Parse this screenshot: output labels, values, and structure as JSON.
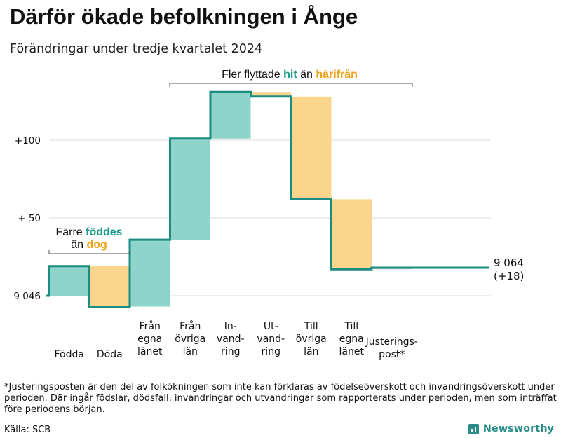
{
  "header": {
    "title": "Därför ökade befolkningen i Ånge",
    "subtitle": "Förändringar under tredje kvartalet 2024"
  },
  "chart_data": {
    "type": "waterfall",
    "title": "Därför ökade befolkningen i Ånge",
    "subtitle": "Förändringar under tredje kvartalet 2024",
    "start_value": 9046,
    "end_value": 9064,
    "net_change": 18,
    "y_ticks": [
      {
        "value": 0,
        "label": "9 046"
      },
      {
        "value": 50,
        "label": "+ 50"
      },
      {
        "value": 100,
        "label": "+100"
      }
    ],
    "ylim": [
      -8,
      136
    ],
    "categories": [
      {
        "label": [
          "Födda"
        ],
        "value": 19,
        "kind": "inflow"
      },
      {
        "label": [
          "Döda"
        ],
        "value": -26,
        "kind": "outflow"
      },
      {
        "label": [
          "Från",
          "egna",
          "länet"
        ],
        "value": 43,
        "kind": "inflow"
      },
      {
        "label": [
          "Från",
          "övriga",
          "län"
        ],
        "value": 65,
        "kind": "inflow"
      },
      {
        "label": [
          "In-",
          "vand-",
          "ring"
        ],
        "value": 30,
        "kind": "inflow"
      },
      {
        "label": [
          "Ut-",
          "vand-",
          "ring"
        ],
        "value": -3,
        "kind": "outflow"
      },
      {
        "label": [
          "Till",
          "övriga",
          "län"
        ],
        "value": -66,
        "kind": "outflow"
      },
      {
        "label": [
          "Till",
          "egna",
          "länet"
        ],
        "value": -45,
        "kind": "outflow"
      },
      {
        "label": [
          "Justerings-",
          "post*"
        ],
        "value": 1,
        "kind": "adjustment"
      }
    ],
    "annotations": {
      "births_deaths": {
        "lines": [
          [
            "Färre ",
            "föddes"
          ],
          [
            "än ",
            "dog"
          ]
        ]
      },
      "migration": {
        "parts": [
          "Fler flyttade ",
          "hit",
          " än ",
          "härifrån"
        ]
      },
      "end_label": [
        "9 064",
        "(+18)"
      ]
    },
    "colors": {
      "inflow": "#8ed4ca",
      "outflow": "#fad58b",
      "adjustment": "#c9c9c9",
      "line": "#1a8c80",
      "hit_text": "#1a9a8a",
      "harifran_text": "#eda117",
      "grid": "#dcdcdc",
      "bracket": "#555555"
    }
  },
  "footnote": "*Justeringsposten är den del av folkökningen som inte kan förklaras av födelseöverskott och invandringsöverskott under perioden. Där ingår födslar, dödsfall, invandringar och utvandringar som rapporterats under perioden, men som inträffat före periodens början.",
  "source": "Källa: SCB",
  "brand": {
    "name": "Newsworthy",
    "icon": "bar-chart-icon"
  }
}
